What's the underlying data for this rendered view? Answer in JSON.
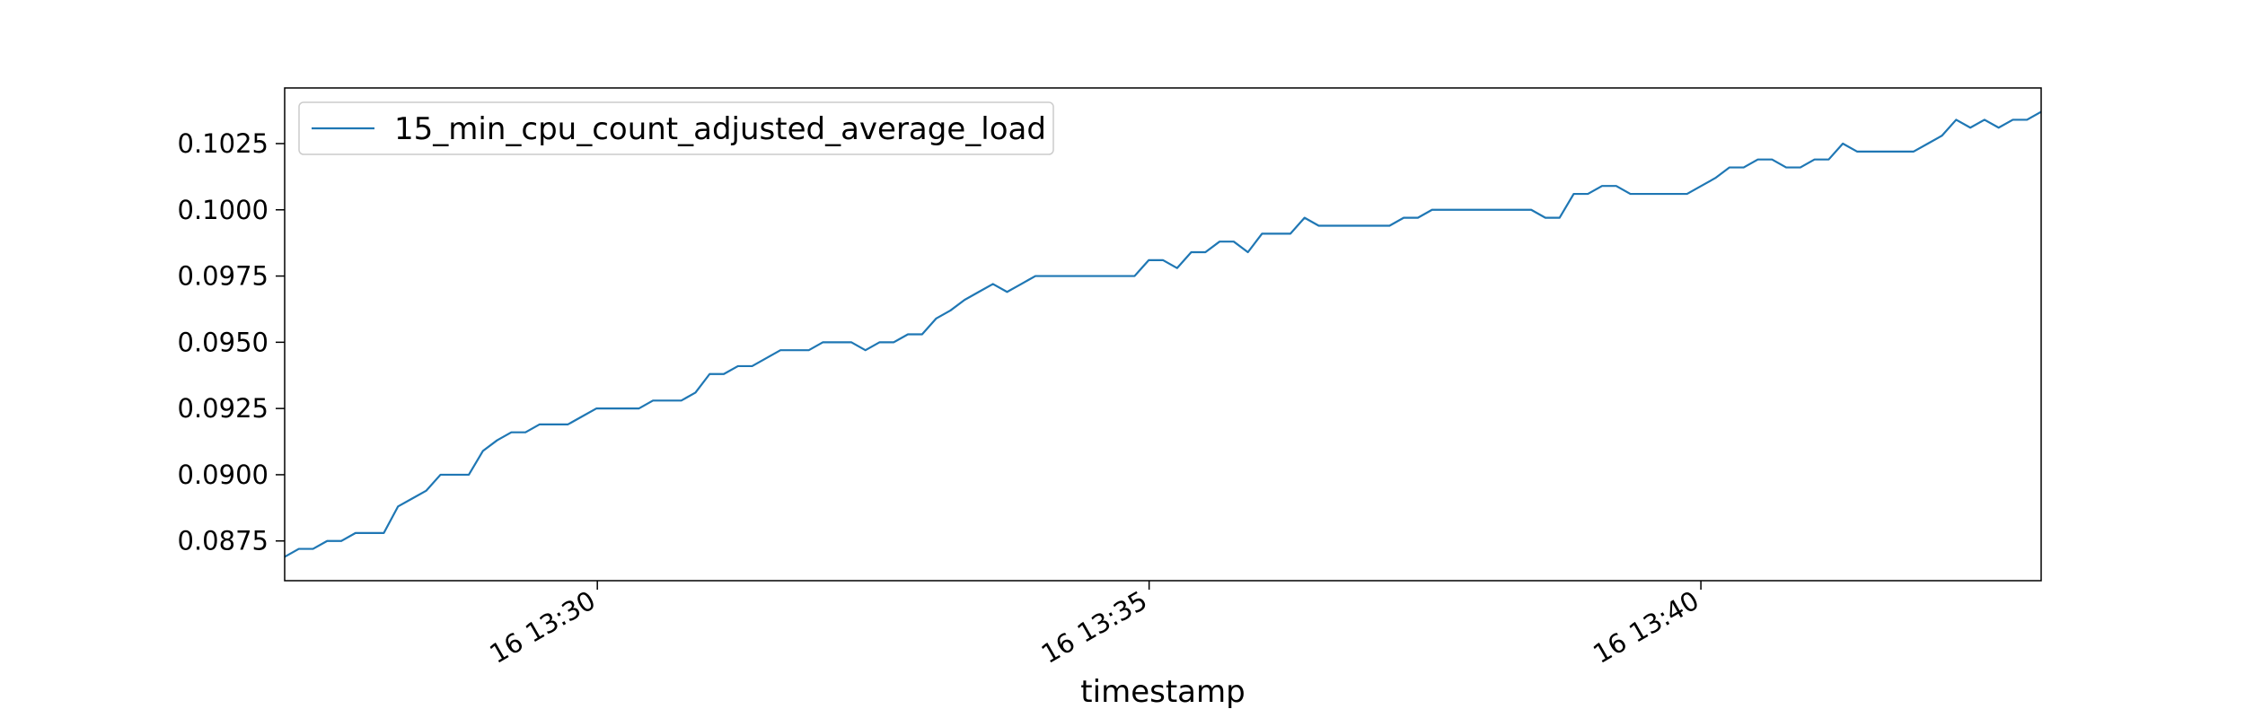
{
  "chart_data": {
    "type": "line",
    "xlabel": "timestamp",
    "ylabel": "",
    "x_start": "16 13:27:10",
    "x_end": "16 13:43:05",
    "xlim": [
      "16 13:27:10",
      "16 13:43:05"
    ],
    "ylim": [
      0.086,
      0.1046
    ],
    "grid": false,
    "legend_position": "top-left",
    "x_ticks": [
      {
        "label": "16 13:30",
        "value": "16 13:30:00"
      },
      {
        "label": "16 13:35",
        "value": "16 13:35:00"
      },
      {
        "label": "16 13:40",
        "value": "16 13:40:00"
      }
    ],
    "y_ticks": [
      {
        "label": "0.0875",
        "value": 0.0875
      },
      {
        "label": "0.0900",
        "value": 0.09
      },
      {
        "label": "0.0925",
        "value": 0.0925
      },
      {
        "label": "0.0950",
        "value": 0.095
      },
      {
        "label": "0.0975",
        "value": 0.0975
      },
      {
        "label": "0.1000",
        "value": 0.1
      },
      {
        "label": "0.1025",
        "value": 0.1025
      }
    ],
    "series": [
      {
        "name": "15_min_cpu_count_adjusted_average_load",
        "color": "#1f77b4",
        "values": [
          0.0869,
          0.0872,
          0.0872,
          0.0875,
          0.0875,
          0.0878,
          0.0878,
          0.0878,
          0.0888,
          0.0891,
          0.0894,
          0.09,
          0.09,
          0.09,
          0.0909,
          0.0913,
          0.0916,
          0.0916,
          0.0919,
          0.0919,
          0.0919,
          0.0922,
          0.0925,
          0.0925,
          0.0925,
          0.0925,
          0.0928,
          0.0928,
          0.0928,
          0.0931,
          0.0938,
          0.0938,
          0.0941,
          0.0941,
          0.0944,
          0.0947,
          0.0947,
          0.0947,
          0.095,
          0.095,
          0.095,
          0.0947,
          0.095,
          0.095,
          0.0953,
          0.0953,
          0.0959,
          0.0962,
          0.0966,
          0.0969,
          0.0972,
          0.0969,
          0.0972,
          0.0975,
          0.0975,
          0.0975,
          0.0975,
          0.0975,
          0.0975,
          0.0975,
          0.0975,
          0.0981,
          0.0981,
          0.0978,
          0.0984,
          0.0984,
          0.0988,
          0.0988,
          0.0984,
          0.0991,
          0.0991,
          0.0991,
          0.0997,
          0.0994,
          0.0994,
          0.0994,
          0.0994,
          0.0994,
          0.0994,
          0.0997,
          0.0997,
          0.1,
          0.1,
          0.1,
          0.1,
          0.1,
          0.1,
          0.1,
          0.1,
          0.0997,
          0.0997,
          0.1006,
          0.1006,
          0.1009,
          0.1009,
          0.1006,
          0.1006,
          0.1006,
          0.1006,
          0.1006,
          0.1009,
          0.1012,
          0.1016,
          0.1016,
          0.1019,
          0.1019,
          0.1016,
          0.1016,
          0.1019,
          0.1019,
          0.1025,
          0.1022,
          0.1022,
          0.1022,
          0.1022,
          0.1022,
          0.1025,
          0.1028,
          0.1034,
          0.1031,
          0.1034,
          0.1031,
          0.1034,
          0.1034,
          0.1037
        ]
      }
    ]
  }
}
